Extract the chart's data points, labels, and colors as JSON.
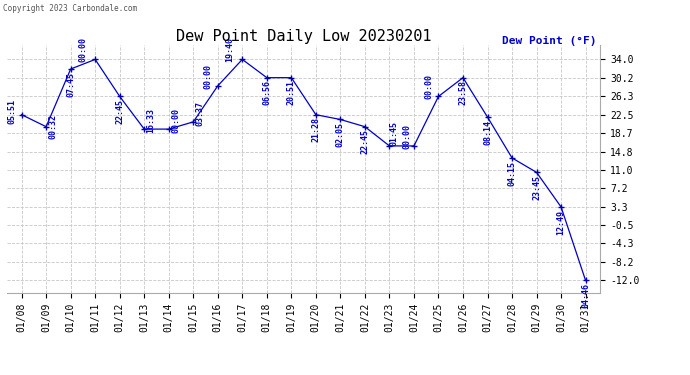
{
  "title": "Dew Point Daily Low 20230201",
  "ylabel": "Dew Point (°F)",
  "copyright": "Copyright 2023 Carbondale.com",
  "background_color": "#ffffff",
  "line_color": "#0000cc",
  "point_color": "#0000aa",
  "yticks": [
    34.0,
    30.2,
    26.3,
    22.5,
    18.7,
    14.8,
    11.0,
    7.2,
    3.3,
    -0.5,
    -4.3,
    -8.2,
    -12.0
  ],
  "dates": [
    "01/08",
    "01/09",
    "01/10",
    "01/11",
    "01/12",
    "01/13",
    "01/14",
    "01/15",
    "01/16",
    "01/17",
    "01/18",
    "01/19",
    "01/20",
    "01/21",
    "01/22",
    "01/23",
    "01/24",
    "01/25",
    "01/26",
    "01/27",
    "01/28",
    "01/29",
    "01/30",
    "01/31"
  ],
  "values": [
    22.5,
    20.0,
    32.0,
    34.0,
    26.3,
    19.5,
    19.5,
    21.0,
    28.5,
    34.0,
    30.2,
    30.2,
    22.5,
    21.5,
    20.0,
    16.0,
    16.0,
    26.3,
    30.2,
    22.0,
    13.5,
    10.5,
    3.3,
    -12.0
  ],
  "labels": [
    "05:51",
    "00:32",
    "07:45",
    "00:00",
    "22:45",
    "16:33",
    "00:00",
    "03:37",
    "00:00",
    "19:40",
    "06:56",
    "20:51",
    "21:28",
    "02:05",
    "22:45",
    "01:45",
    "00:00",
    "00:00",
    "23:58",
    "08:14",
    "04:15",
    "23:45",
    "12:49",
    "04:46"
  ],
  "label_offsets_x": [
    -7,
    5,
    0,
    -9,
    0,
    5,
    5,
    5,
    -7,
    -9,
    0,
    0,
    0,
    0,
    0,
    3,
    -5,
    -7,
    0,
    0,
    0,
    0,
    0,
    0
  ],
  "label_offsets_y": [
    2,
    0,
    -11,
    7,
    -11,
    6,
    6,
    6,
    7,
    7,
    -11,
    -11,
    -11,
    -11,
    -11,
    9,
    7,
    7,
    -11,
    -11,
    -11,
    -11,
    -11,
    -11
  ],
  "ylim_min": -14.5,
  "ylim_max": 37.0,
  "grid_color": "#c8c8c8",
  "title_fontsize": 11,
  "tick_fontsize": 7,
  "label_fontsize": 6,
  "ylabel_fontsize": 8,
  "copyright_fontsize": 5.5
}
